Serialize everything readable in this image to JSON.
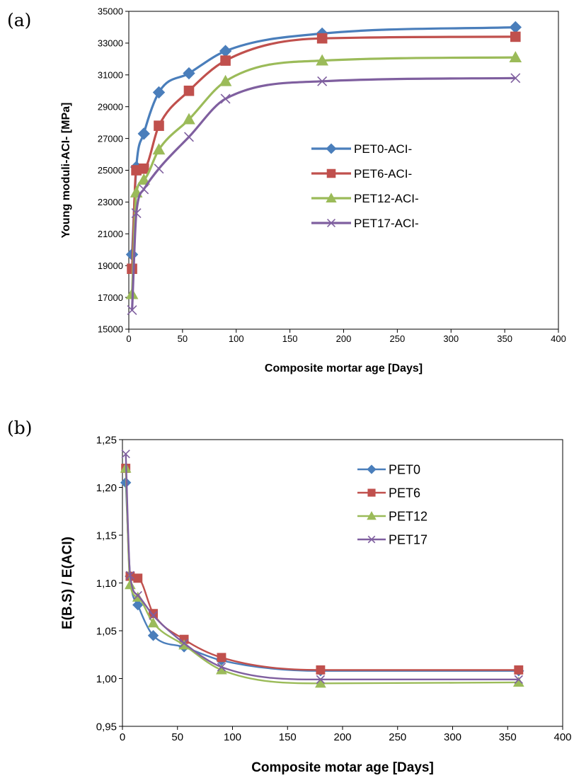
{
  "panel_labels": [
    "(a)",
    "(b)"
  ],
  "colors": {
    "PET0": "#4a7ebb",
    "PET6": "#c0504d",
    "PET12": "#9bbb59",
    "PET17": "#7f5f9f"
  },
  "chart_data": [
    {
      "type": "line",
      "xlabel": "Composite mortar age [Days]",
      "ylabel": "Young moduli-ACI- [MPa]",
      "xlim": [
        0,
        400
      ],
      "ylim": [
        15000,
        35000
      ],
      "xticks": [
        "0",
        "50",
        "100",
        "150",
        "200",
        "250",
        "300",
        "350",
        "400"
      ],
      "yticks": [
        "15000",
        "17000",
        "19000",
        "21000",
        "23000",
        "25000",
        "27000",
        "29000",
        "31000",
        "33000",
        "35000"
      ],
      "legend_position": "right-middle",
      "grid": false,
      "x": [
        3,
        7,
        14,
        28,
        56,
        90,
        180,
        360
      ],
      "series": [
        {
          "name": "PET0-ACI-",
          "marker": "diamond",
          "color_key": "PET0",
          "values": [
            19700,
            25200,
            27300,
            29900,
            31100,
            32500,
            33600,
            34000
          ]
        },
        {
          "name": "PET6-ACI-",
          "marker": "square",
          "color_key": "PET6",
          "values": [
            18800,
            25000,
            25100,
            27800,
            30000,
            31900,
            33300,
            33400
          ]
        },
        {
          "name": "PET12-ACI-",
          "marker": "triangle",
          "color_key": "PET12",
          "values": [
            17200,
            23600,
            24400,
            26300,
            28200,
            30600,
            31900,
            32100
          ]
        },
        {
          "name": "PET17-ACI-",
          "marker": "cross",
          "color_key": "PET17",
          "values": [
            16200,
            22300,
            23800,
            25100,
            27100,
            29500,
            30600,
            30800
          ]
        }
      ]
    },
    {
      "type": "line",
      "xlabel": "Composite motar age [Days]",
      "ylabel": "E(B.S) / E(ACI)",
      "xlim": [
        0,
        400
      ],
      "ylim": [
        0.95,
        1.25
      ],
      "xticks": [
        "0",
        "50",
        "100",
        "150",
        "200",
        "250",
        "300",
        "350",
        "400"
      ],
      "yticks": [
        "0,95",
        "1,00",
        "1,05",
        "1,10",
        "1,15",
        "1,20",
        "1,25"
      ],
      "legend_position": "top-right",
      "grid": false,
      "x": [
        3,
        7,
        14,
        28,
        56,
        90,
        180,
        360
      ],
      "series": [
        {
          "name": "PET0",
          "marker": "diamond",
          "color_key": "PET0",
          "values": [
            1.205,
            1.107,
            1.077,
            1.045,
            1.033,
            1.019,
            1.008,
            1.008
          ]
        },
        {
          "name": "PET6",
          "marker": "square",
          "color_key": "PET6",
          "values": [
            1.22,
            1.107,
            1.105,
            1.068,
            1.041,
            1.022,
            1.009,
            1.009
          ]
        },
        {
          "name": "PET12",
          "marker": "triangle",
          "color_key": "PET12",
          "values": [
            1.22,
            1.098,
            1.085,
            1.058,
            1.035,
            1.009,
            0.995,
            0.996
          ]
        },
        {
          "name": "PET17",
          "marker": "cross",
          "color_key": "PET17",
          "values": [
            1.235,
            1.108,
            1.087,
            1.066,
            1.037,
            1.012,
            0.999,
            0.999
          ]
        }
      ]
    }
  ]
}
